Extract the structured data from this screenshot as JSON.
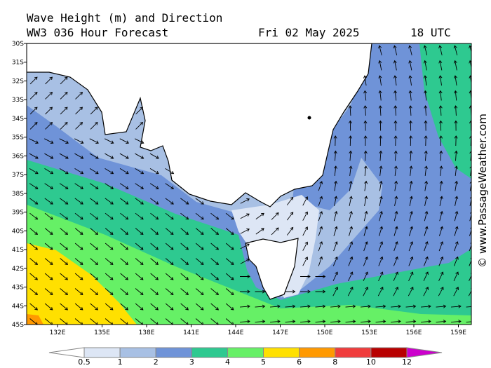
{
  "header": {
    "title": "Wave Height (m) and Direction",
    "model": "WW3 036 Hour Forecast",
    "date": "Fri 02 May 2025",
    "time": "18 UTC"
  },
  "map": {
    "latitude_labels": [
      "30S",
      "31S",
      "32S",
      "33S",
      "34S",
      "35S",
      "36S",
      "37S",
      "38S",
      "39S",
      "40S",
      "41S",
      "42S",
      "43S",
      "44S",
      "45S"
    ],
    "longitude_labels": [
      "132E",
      "135E",
      "138E",
      "141E",
      "144E",
      "147E",
      "150E",
      "153E",
      "156E",
      "159E"
    ],
    "watermark": "© www.PassageWeather.com"
  },
  "legend": {
    "labels": [
      "0.5",
      "1",
      "2",
      "3",
      "4",
      "5",
      "6",
      "8",
      "10",
      "12"
    ]
  }
}
